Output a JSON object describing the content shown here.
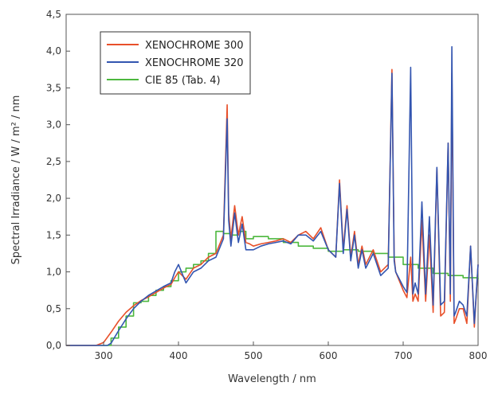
{
  "chart_data": {
    "type": "line",
    "title": "",
    "xlabel": "Wavelength / nm",
    "ylabel": "Spectral Irradiance / W / m² / nm",
    "xlim": [
      250,
      800
    ],
    "ylim": [
      0,
      4.5
    ],
    "x_ticks": [
      300,
      400,
      500,
      600,
      700,
      800
    ],
    "x_tick_labels": [
      "300",
      "400",
      "500",
      "600",
      "700",
      "800"
    ],
    "y_ticks": [
      0,
      0.5,
      1.0,
      1.5,
      2.0,
      2.5,
      3.0,
      3.5,
      4.0,
      4.5
    ],
    "y_tick_labels": [
      "0,0",
      "0,5",
      "1,0",
      "1,5",
      "2,0",
      "2,5",
      "3,0",
      "3,5",
      "4,0",
      "4,5"
    ],
    "grid": false,
    "legend_position": "top-left",
    "series": [
      {
        "name": "XENOCHROME 300",
        "color": "#e8502a",
        "x": [
          250,
          290,
          300,
          310,
          320,
          330,
          340,
          350,
          360,
          370,
          380,
          390,
          395,
          400,
          410,
          420,
          430,
          440,
          450,
          460,
          465,
          467,
          470,
          475,
          480,
          485,
          490,
          495,
          500,
          510,
          520,
          530,
          540,
          550,
          560,
          570,
          580,
          590,
          600,
          610,
          615,
          620,
          625,
          630,
          635,
          640,
          645,
          650,
          660,
          670,
          680,
          685,
          688,
          690,
          700,
          705,
          710,
          713,
          716,
          720,
          725,
          730,
          735,
          740,
          745,
          750,
          755,
          760,
          763,
          765,
          768,
          770,
          775,
          780,
          785,
          790,
          795,
          800
        ],
        "y": [
          0,
          0,
          0.04,
          0.18,
          0.33,
          0.45,
          0.54,
          0.61,
          0.66,
          0.72,
          0.78,
          0.83,
          0.92,
          1.0,
          0.9,
          1.05,
          1.1,
          1.2,
          1.25,
          1.5,
          3.27,
          1.8,
          1.45,
          1.9,
          1.5,
          1.75,
          1.4,
          1.38,
          1.35,
          1.38,
          1.4,
          1.42,
          1.45,
          1.4,
          1.5,
          1.55,
          1.45,
          1.6,
          1.3,
          1.2,
          2.25,
          1.3,
          1.9,
          1.2,
          1.55,
          1.1,
          1.35,
          1.1,
          1.3,
          1.0,
          1.1,
          3.75,
          1.2,
          1.0,
          0.75,
          0.65,
          1.2,
          0.6,
          0.7,
          0.6,
          1.7,
          0.6,
          1.5,
          0.45,
          2.4,
          0.4,
          0.45,
          2.75,
          0.6,
          3.7,
          0.3,
          0.35,
          0.5,
          0.5,
          0.3,
          1.35,
          0.25,
          1.1
        ]
      },
      {
        "name": "XENOCHROME 320",
        "color": "#3355b0",
        "x": [
          250,
          305,
          310,
          320,
          330,
          340,
          350,
          360,
          370,
          380,
          390,
          395,
          400,
          410,
          420,
          430,
          440,
          450,
          460,
          465,
          467,
          470,
          475,
          480,
          485,
          490,
          495,
          500,
          510,
          520,
          530,
          540,
          550,
          560,
          570,
          580,
          590,
          600,
          610,
          615,
          620,
          625,
          630,
          635,
          640,
          645,
          650,
          660,
          670,
          680,
          685,
          688,
          690,
          700,
          705,
          710,
          713,
          716,
          720,
          725,
          730,
          735,
          740,
          745,
          750,
          755,
          760,
          763,
          765,
          768,
          770,
          775,
          780,
          785,
          790,
          795,
          800
        ],
        "y": [
          0,
          0,
          0.03,
          0.2,
          0.36,
          0.5,
          0.6,
          0.68,
          0.74,
          0.8,
          0.85,
          1.0,
          1.1,
          0.85,
          1.0,
          1.05,
          1.15,
          1.2,
          1.45,
          3.08,
          1.7,
          1.35,
          1.8,
          1.4,
          1.65,
          1.3,
          1.3,
          1.3,
          1.35,
          1.38,
          1.4,
          1.42,
          1.38,
          1.5,
          1.5,
          1.42,
          1.55,
          1.3,
          1.2,
          2.2,
          1.25,
          1.85,
          1.15,
          1.5,
          1.05,
          1.3,
          1.05,
          1.25,
          0.95,
          1.05,
          3.7,
          1.15,
          1.0,
          0.8,
          0.72,
          3.78,
          0.7,
          0.85,
          0.7,
          1.95,
          0.7,
          1.75,
          0.55,
          2.42,
          0.55,
          0.6,
          2.75,
          0.7,
          4.06,
          0.4,
          0.45,
          0.6,
          0.55,
          0.4,
          1.35,
          0.3,
          1.1
        ]
      },
      {
        "name": "CIE 85 (Tab. 4)",
        "color": "#4db83e",
        "step": true,
        "x": [
          250,
          305,
          310,
          320,
          330,
          340,
          350,
          360,
          370,
          380,
          390,
          400,
          410,
          420,
          430,
          440,
          450,
          460,
          470,
          480,
          490,
          500,
          520,
          540,
          560,
          580,
          600,
          620,
          640,
          660,
          680,
          700,
          720,
          740,
          760,
          780,
          800
        ],
        "y": [
          0,
          0,
          0.1,
          0.25,
          0.4,
          0.58,
          0.6,
          0.68,
          0.75,
          0.8,
          0.88,
          1.0,
          1.05,
          1.1,
          1.15,
          1.25,
          1.55,
          1.52,
          1.5,
          1.55,
          1.45,
          1.48,
          1.45,
          1.4,
          1.35,
          1.32,
          1.28,
          1.3,
          1.28,
          1.25,
          1.2,
          1.1,
          1.05,
          0.98,
          0.95,
          0.92,
          0.9
        ]
      }
    ]
  }
}
